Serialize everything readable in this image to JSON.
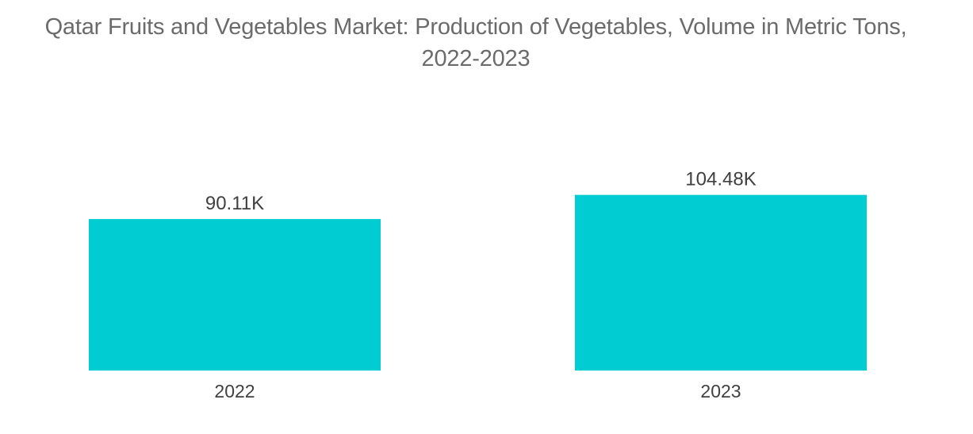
{
  "chart_data": {
    "type": "bar",
    "title": "Qatar Fruits and Vegetables Market: Production of Vegetables, Volume in Metric Tons,",
    "title_line2": "2022-2023",
    "categories": [
      "2022",
      "2023"
    ],
    "values": [
      90.11,
      104.48
    ],
    "data_labels": [
      "90.11K",
      "104.48K"
    ],
    "xlabel": "",
    "ylabel": "",
    "ylim": [
      0,
      160
    ],
    "grid": false,
    "legend": "none",
    "bar_color": "#00ccd1"
  }
}
